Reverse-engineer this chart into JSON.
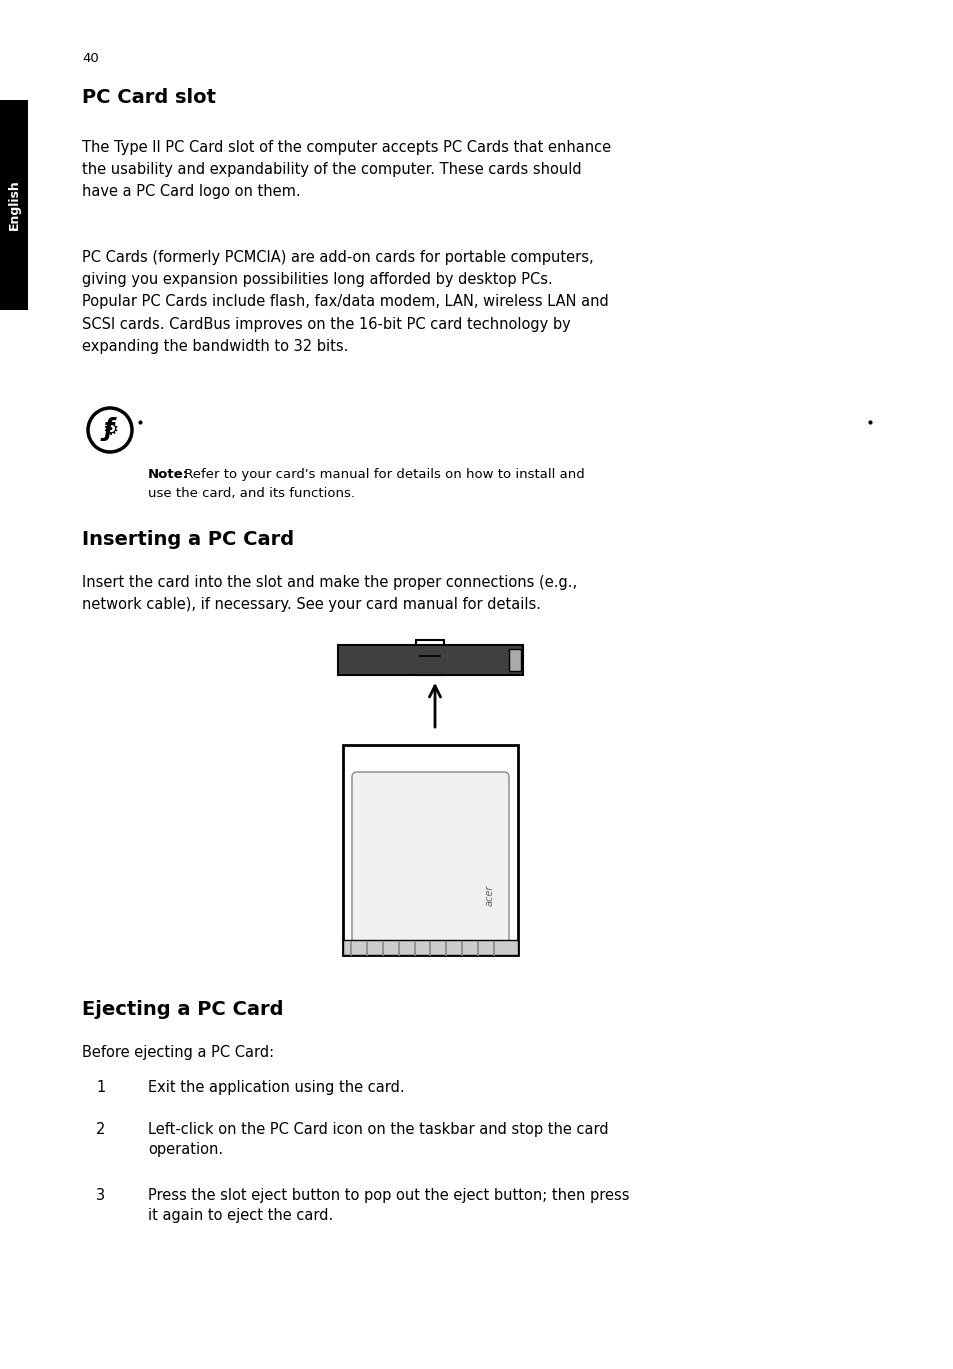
{
  "page_number": "40",
  "bg_color": "#ffffff",
  "sidebar_color": "#000000",
  "sidebar_text": "English",
  "title1": "PC Card slot",
  "para1": "The Type II PC Card slot of the computer accepts PC Cards that enhance\nthe usability and expandability of the computer. These cards should\nhave a PC Card logo on them.",
  "para2": "PC Cards (formerly PCMCIA) are add-on cards for portable computers,\ngiving you expansion possibilities long afforded by desktop PCs.\nPopular PC Cards include flash, fax/data modem, LAN, wireless LAN and\nSCSI cards. CardBus improves on the 16-bit PC card technology by\nexpanding the bandwidth to 32 bits.",
  "note_bold": "Note:",
  "note_text1": " Refer to your card's manual for details on how to install and",
  "note_text2": "use the card, and its functions.",
  "title2": "Inserting a PC Card",
  "para3": "Insert the card into the slot and make the proper connections (e.g.,\nnetwork cable), if necessary. See your card manual for details.",
  "title3": "Ejecting a PC Card",
  "para4": "Before ejecting a PC Card:",
  "list_item1": "Exit the application using the card.",
  "list_item2a": "Left-click on the PC Card icon on the taskbar and stop the card",
  "list_item2b": "operation.",
  "list_item3a": "Press the slot eject button to pop out the eject button; then press",
  "list_item3b": "it again to eject the card.",
  "text_color": "#000000",
  "title_fontsize": 14,
  "body_fontsize": 10.5,
  "note_fontsize": 9.5,
  "page_num_fontsize": 9.5
}
